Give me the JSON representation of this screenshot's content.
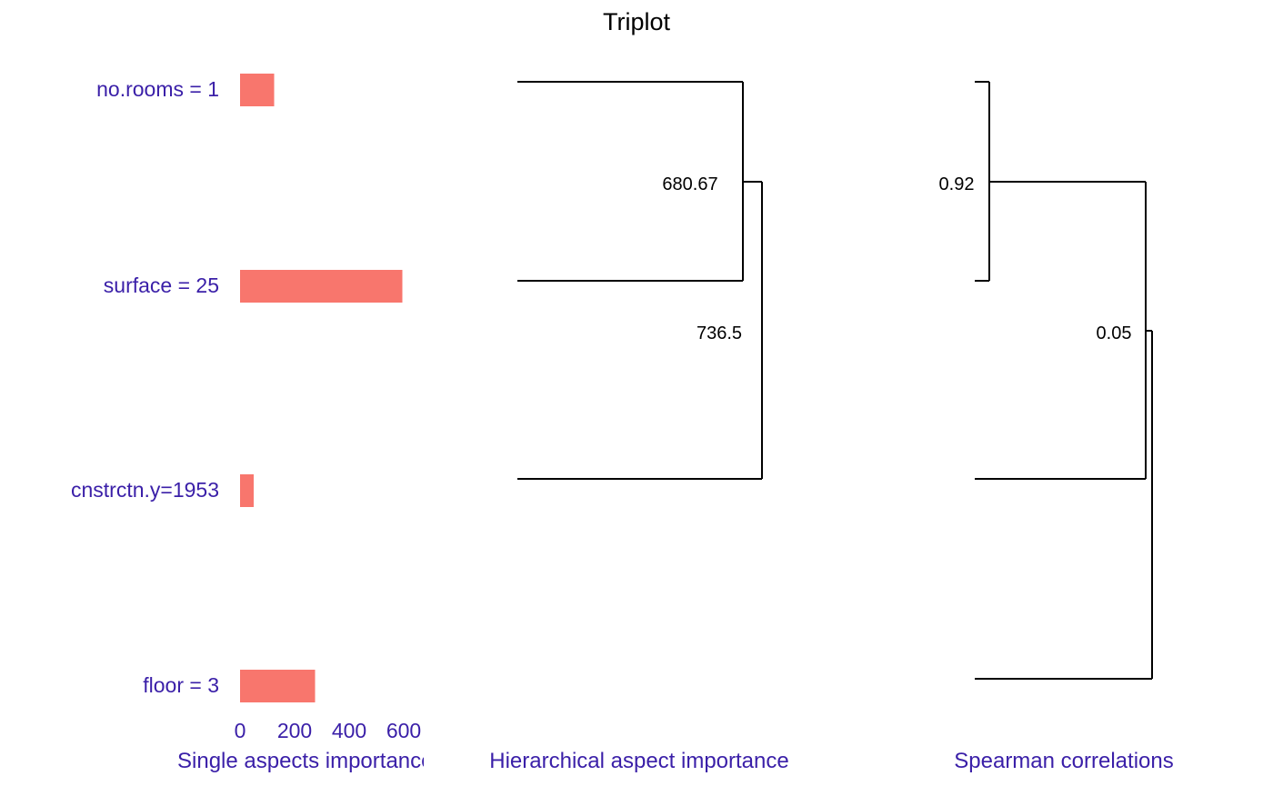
{
  "chart_data": [
    {
      "type": "bar",
      "panel": "single",
      "xlabel": "Single aspects importance",
      "categories": [
        "no.rooms = 1",
        "surface = 25",
        "cnstrctn.y=1953",
        "floor = 3"
      ],
      "values": [
        125,
        595,
        50,
        275
      ],
      "xticks": [
        "0",
        "200",
        "400",
        "600"
      ],
      "xlim": [
        0,
        600
      ],
      "bar_color": "#F8766D",
      "label_color": "#3A1FA8"
    },
    {
      "type": "dendrogram",
      "panel": "hierarchical",
      "xlabel": "Hierarchical aspect importance",
      "merges": [
        {
          "children": [
            "no.rooms = 1",
            "surface = 25"
          ],
          "height": 680.67,
          "label": "680.67"
        },
        {
          "children": [
            "merge-1",
            "cnstrctn.y=1953"
          ],
          "height": 736.5,
          "label": "736.5"
        }
      ]
    },
    {
      "type": "dendrogram",
      "panel": "correlation",
      "xlabel": "Spearman correlations",
      "merges": [
        {
          "children": [
            "no.rooms = 1",
            "surface = 25"
          ],
          "height": 0.92,
          "label": "0.92"
        },
        {
          "children": [
            "merge-1",
            "cnstrctn.y=1953",
            "floor = 3"
          ],
          "height": 0.05,
          "label": "0.05"
        }
      ]
    }
  ],
  "title": "Triplot"
}
